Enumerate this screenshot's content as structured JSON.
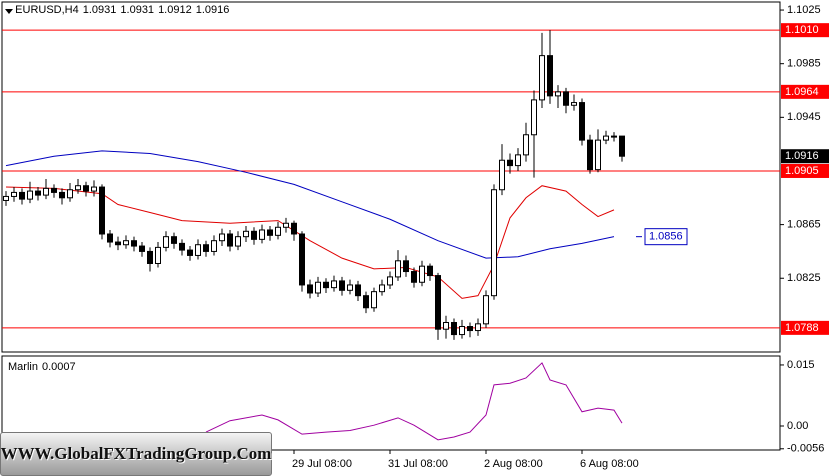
{
  "chart_data": {
    "type": "candlestick",
    "title": "EURUSD,H4",
    "watermark": "WWW.GlobalFXTradingGroup.Com",
    "categories": [
      null,
      null,
      null,
      null,
      null,
      null,
      null,
      null,
      null,
      null,
      null,
      null,
      null,
      null,
      null,
      null,
      null,
      null,
      null,
      null,
      null,
      null,
      null,
      null,
      null,
      null,
      null,
      null,
      null,
      null,
      null,
      null,
      null,
      null,
      null,
      null,
      "29 Jul 08:00",
      null,
      null,
      null,
      null,
      null,
      null,
      null,
      null,
      null,
      null,
      null,
      "31 Jul 08:00",
      null,
      null,
      null,
      null,
      null,
      null,
      null,
      null,
      null,
      null,
      null,
      "2 Aug 08:00",
      null,
      null,
      null,
      null,
      null,
      null,
      null,
      null,
      null,
      null,
      null,
      "6 Aug 08:00",
      null,
      null,
      null,
      null,
      null
    ],
    "open": [
      1.0883,
      1.0886,
      1.0889,
      1.0884,
      1.089,
      1.0887,
      1.0892,
      1.0889,
      1.0885,
      1.0891,
      1.0894,
      1.089,
      1.0893,
      1.0858,
      1.0852,
      1.085,
      1.0853,
      1.0849,
      1.0845,
      1.0836,
      1.0848,
      1.0856,
      1.0851,
      1.0846,
      1.0842,
      1.085,
      1.0845,
      1.0853,
      1.0858,
      1.0849,
      1.0856,
      1.086,
      1.0854,
      1.0861,
      1.0857,
      1.0863,
      1.0866,
      1.0858,
      1.082,
      1.0814,
      1.0822,
      1.0818,
      1.0823,
      1.0816,
      1.082,
      1.0812,
      1.0803,
      1.0815,
      1.082,
      1.0826,
      1.0838,
      1.083,
      1.0822,
      1.0834,
      1.0827,
      1.0787,
      1.0792,
      1.0783,
      1.0789,
      1.0786,
      1.0791,
      1.0812,
      1.0891,
      1.0913,
      1.0909,
      1.0917,
      1.0932,
      1.0958,
      1.0991,
      1.0961,
      1.0964,
      1.0954,
      1.0956,
      1.0928,
      1.0906,
      1.0928,
      1.0931,
      1.0931
    ],
    "high": [
      1.089,
      1.0893,
      1.0892,
      1.0897,
      1.0893,
      1.0899,
      1.0895,
      1.0892,
      1.0896,
      1.0899,
      1.0897,
      1.0898,
      1.0895,
      1.0861,
      1.0856,
      1.0857,
      1.0856,
      1.0852,
      1.0848,
      1.0852,
      1.086,
      1.0859,
      1.0854,
      1.0849,
      1.0854,
      1.0853,
      1.0857,
      1.0862,
      1.0861,
      1.086,
      1.0864,
      1.0863,
      1.0865,
      1.0864,
      1.0867,
      1.087,
      1.0868,
      1.086,
      1.0824,
      1.0826,
      1.0825,
      1.0827,
      1.0826,
      1.0824,
      1.0823,
      1.0815,
      1.0818,
      1.0824,
      1.083,
      1.0846,
      1.0842,
      1.0833,
      1.0838,
      1.0836,
      1.0829,
      1.0797,
      1.0795,
      1.0794,
      1.0792,
      1.0795,
      1.0816,
      1.0895,
      1.0925,
      1.0918,
      1.0922,
      1.0941,
      1.0965,
      1.1008,
      1.101,
      1.0969,
      1.0967,
      1.0962,
      1.0959,
      1.0932,
      1.0936,
      1.0935,
      1.0934,
      1.0931
    ],
    "low": [
      1.0879,
      1.0882,
      1.088,
      1.0881,
      1.0883,
      1.0884,
      1.0885,
      1.088,
      1.0882,
      1.0888,
      1.0886,
      1.0886,
      1.0854,
      1.0848,
      1.0846,
      1.0847,
      1.0845,
      1.0841,
      1.083,
      1.0833,
      1.0845,
      1.0847,
      1.0842,
      1.0838,
      1.0839,
      1.0841,
      1.0842,
      1.0849,
      1.0845,
      1.0846,
      1.0852,
      1.085,
      1.0851,
      1.0853,
      1.0854,
      1.0859,
      1.0853,
      1.0815,
      1.081,
      1.0811,
      1.0814,
      1.0815,
      1.0812,
      1.0813,
      1.0808,
      1.0799,
      1.08,
      1.0812,
      1.0817,
      1.0823,
      1.0826,
      1.0818,
      1.0819,
      1.0823,
      1.0779,
      1.078,
      1.0779,
      1.078,
      1.0781,
      1.0782,
      1.0788,
      1.0809,
      1.0887,
      1.0903,
      1.0905,
      1.0912,
      1.09,
      1.0952,
      1.0955,
      1.0952,
      1.0948,
      1.095,
      1.0924,
      1.0903,
      1.0904,
      1.0925,
      1.0927,
      1.0912
    ],
    "close": [
      1.0886,
      1.0889,
      1.0884,
      1.089,
      1.0887,
      1.0892,
      1.0889,
      1.0885,
      1.0891,
      1.0894,
      1.089,
      1.0893,
      1.0858,
      1.0852,
      1.085,
      1.0853,
      1.0849,
      1.0845,
      1.0836,
      1.0848,
      1.0856,
      1.0851,
      1.0846,
      1.0842,
      1.085,
      1.0845,
      1.0853,
      1.0858,
      1.0849,
      1.0856,
      1.086,
      1.0854,
      1.0861,
      1.0857,
      1.0863,
      1.0866,
      1.0858,
      1.082,
      1.0814,
      1.0822,
      1.0818,
      1.0823,
      1.0816,
      1.082,
      1.0812,
      1.0803,
      1.0815,
      1.082,
      1.0826,
      1.0838,
      1.083,
      1.0822,
      1.0834,
      1.0827,
      1.0787,
      1.0792,
      1.0783,
      1.0789,
      1.0786,
      1.0791,
      1.0812,
      1.0891,
      1.0913,
      1.0909,
      1.0917,
      1.0932,
      1.0958,
      1.0991,
      1.0961,
      1.0964,
      1.0954,
      1.0956,
      1.0928,
      1.0906,
      1.0928,
      1.0931,
      1.0931,
      1.0916
    ],
    "up_color": "#ffffff",
    "down_color": "#000000",
    "ylim": [
      1.077,
      1.1031
    ],
    "yticks": [
      1.1025,
      1.0985,
      1.0945,
      1.0865,
      1.0825
    ],
    "levels": [
      {
        "value": 1.101,
        "label": "1.1010"
      },
      1.0964,
      1.0905,
      1.0788
    ],
    "level_color": "#ff0000",
    "moving_averages": [
      {
        "color": "#e00000",
        "x": [
          0,
          6,
          12,
          14,
          18,
          22,
          28,
          34,
          38,
          42,
          46,
          50,
          54,
          57,
          59,
          61,
          63,
          65,
          67,
          70,
          72,
          74,
          76
        ],
        "values": [
          1.0893,
          1.0892,
          1.0888,
          1.088,
          1.0874,
          1.0868,
          1.0866,
          1.0868,
          1.0853,
          1.084,
          1.0832,
          1.0833,
          1.0826,
          1.081,
          1.0812,
          1.0835,
          1.087,
          1.0885,
          1.0894,
          1.089,
          1.088,
          1.0871,
          1.0876
        ]
      },
      {
        "color": "#0000c0",
        "x": [
          0,
          6,
          12,
          18,
          24,
          30,
          36,
          42,
          48,
          54,
          60,
          64,
          68,
          72,
          76
        ],
        "values": [
          1.0909,
          1.0916,
          1.092,
          1.0918,
          1.0912,
          1.0904,
          1.0895,
          1.0882,
          1.0869,
          1.0853,
          1.084,
          1.0841,
          1.0847,
          1.0851,
          1.0856
        ]
      }
    ],
    "indicator": {
      "type": "line",
      "name": "Marlin",
      "color": "#a000a0",
      "x": [
        25,
        28,
        32,
        34,
        37,
        40,
        43,
        46,
        49,
        51,
        54,
        56,
        58,
        60,
        61,
        63,
        65,
        67,
        68,
        70,
        72,
        74,
        76,
        77
      ],
      "values": [
        -0.0015,
        0.0013,
        0.0027,
        0.0015,
        -0.002,
        -0.0015,
        -0.0011,
        0.0002,
        0.002,
        0.0002,
        -0.0034,
        -0.0027,
        -0.0015,
        0.0027,
        0.0101,
        0.0105,
        0.0118,
        0.0155,
        0.0113,
        0.0101,
        0.0035,
        0.0044,
        0.0039,
        0.0007
      ],
      "ylim": [
        -0.0059,
        0.0172
      ],
      "yticks": [
        0.015,
        {
          "value": 0,
          "label": "0.00"
        },
        -0.0056
      ]
    }
  }
}
